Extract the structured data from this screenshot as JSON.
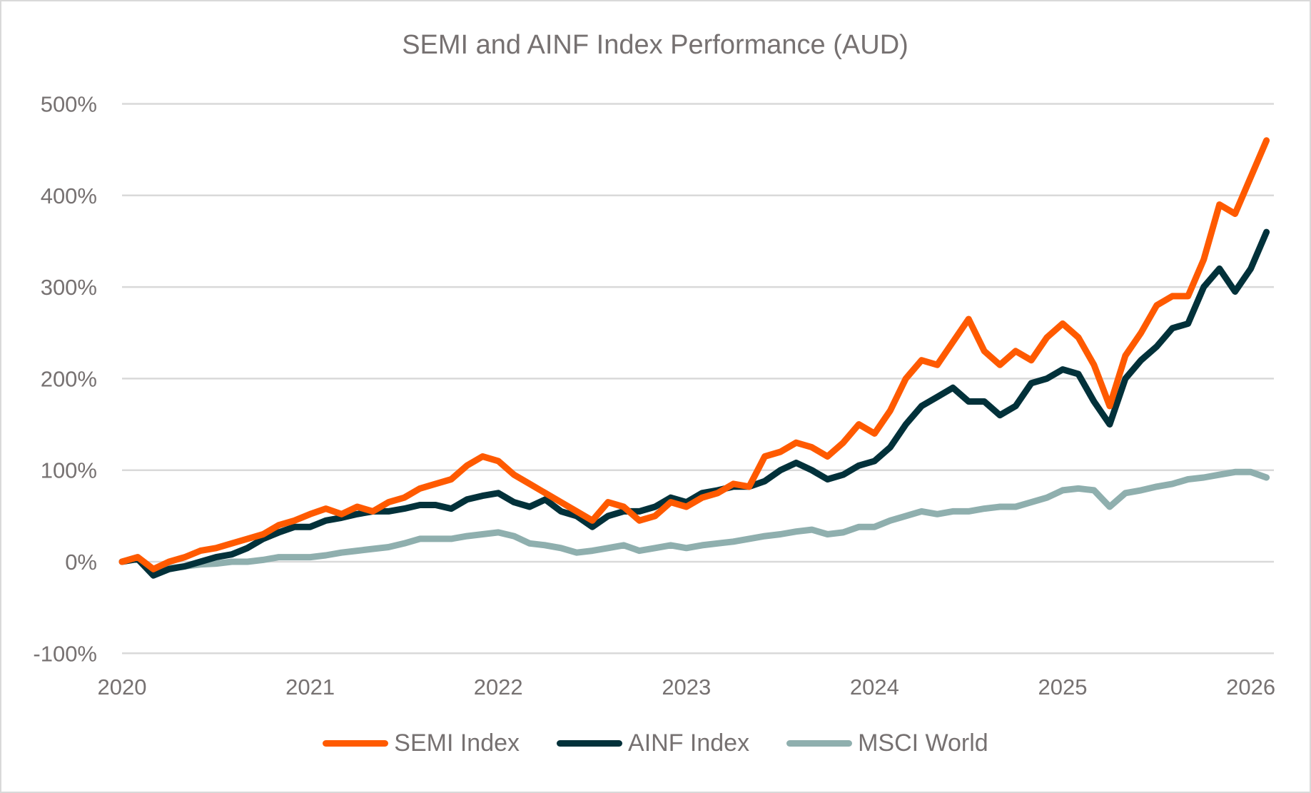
{
  "chart_data": {
    "type": "line",
    "title": "SEMI and AINF Index Performance (AUD)",
    "xlabel": "",
    "ylabel": "",
    "xlim": [
      "2020-01",
      "2026-02"
    ],
    "ylim": [
      -100,
      500
    ],
    "yticks": [
      "-100%",
      "0%",
      "100%",
      "200%",
      "300%",
      "400%",
      "500%"
    ],
    "ytick_values": [
      -100,
      0,
      100,
      200,
      300,
      400,
      500
    ],
    "xticks": [
      "2020",
      "2021",
      "2022",
      "2023",
      "2024",
      "2025",
      "2026"
    ],
    "grid": true,
    "legend": "bottom",
    "x": [
      "2020-01",
      "2020-02",
      "2020-03",
      "2020-04",
      "2020-05",
      "2020-06",
      "2020-07",
      "2020-08",
      "2020-09",
      "2020-10",
      "2020-11",
      "2020-12",
      "2021-01",
      "2021-02",
      "2021-03",
      "2021-04",
      "2021-05",
      "2021-06",
      "2021-07",
      "2021-08",
      "2021-09",
      "2021-10",
      "2021-11",
      "2021-12",
      "2022-01",
      "2022-02",
      "2022-03",
      "2022-04",
      "2022-05",
      "2022-06",
      "2022-07",
      "2022-08",
      "2022-09",
      "2022-10",
      "2022-11",
      "2022-12",
      "2023-01",
      "2023-02",
      "2023-03",
      "2023-04",
      "2023-05",
      "2023-06",
      "2023-07",
      "2023-08",
      "2023-09",
      "2023-10",
      "2023-11",
      "2023-12",
      "2024-01",
      "2024-02",
      "2024-03",
      "2024-04",
      "2024-05",
      "2024-06",
      "2024-07",
      "2024-08",
      "2024-09",
      "2024-10",
      "2024-11",
      "2024-12",
      "2025-01",
      "2025-02",
      "2025-03",
      "2025-04",
      "2025-05",
      "2025-06",
      "2025-07",
      "2025-08",
      "2025-09",
      "2025-10",
      "2025-11",
      "2025-12",
      "2026-01",
      "2026-02"
    ],
    "series": [
      {
        "name": "SEMI Index",
        "color": "#FF5A00",
        "values": [
          0,
          5,
          -8,
          0,
          5,
          12,
          15,
          20,
          25,
          30,
          40,
          45,
          52,
          58,
          52,
          60,
          55,
          65,
          70,
          80,
          85,
          90,
          105,
          115,
          110,
          95,
          85,
          75,
          65,
          55,
          45,
          65,
          60,
          45,
          50,
          65,
          60,
          70,
          75,
          85,
          82,
          115,
          120,
          130,
          125,
          115,
          130,
          150,
          140,
          165,
          200,
          220,
          215,
          240,
          265,
          230,
          215,
          230,
          220,
          245,
          260,
          245,
          215,
          170,
          225,
          250,
          280,
          290,
          290,
          330,
          390,
          380,
          420,
          460
        ]
      },
      {
        "name": "AINF Index",
        "color": "#02313A",
        "values": [
          0,
          3,
          -15,
          -8,
          -5,
          0,
          5,
          8,
          15,
          25,
          32,
          38,
          38,
          45,
          48,
          52,
          55,
          55,
          58,
          62,
          62,
          58,
          68,
          72,
          75,
          65,
          60,
          68,
          55,
          50,
          38,
          50,
          55,
          55,
          60,
          70,
          65,
          75,
          78,
          82,
          82,
          88,
          100,
          108,
          100,
          90,
          95,
          105,
          110,
          125,
          150,
          170,
          180,
          190,
          175,
          175,
          160,
          170,
          195,
          200,
          210,
          205,
          175,
          150,
          200,
          220,
          235,
          255,
          260,
          300,
          320,
          295,
          320,
          360
        ]
      },
      {
        "name": "MSCI World",
        "color": "#8FAFAE",
        "values": [
          0,
          5,
          -10,
          -7,
          -5,
          -3,
          -2,
          0,
          0,
          2,
          5,
          5,
          5,
          7,
          10,
          12,
          14,
          16,
          20,
          25,
          25,
          25,
          28,
          30,
          32,
          28,
          20,
          18,
          15,
          10,
          12,
          15,
          18,
          12,
          15,
          18,
          15,
          18,
          20,
          22,
          25,
          28,
          30,
          33,
          35,
          30,
          32,
          38,
          38,
          45,
          50,
          55,
          52,
          55,
          55,
          58,
          60,
          60,
          65,
          70,
          78,
          80,
          78,
          60,
          75,
          78,
          82,
          85,
          90,
          92,
          95,
          98,
          98,
          92
        ]
      }
    ]
  }
}
